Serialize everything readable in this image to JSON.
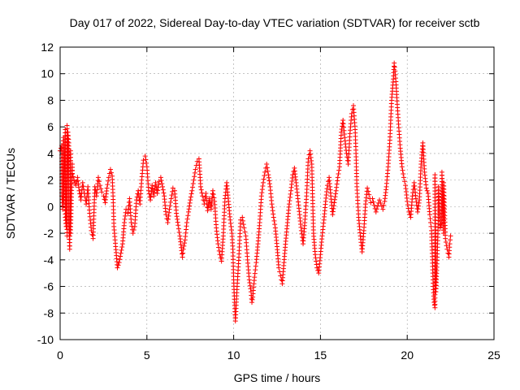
{
  "chart_data": {
    "type": "scatter",
    "title": "Day 017 of 2022, Sidereal Day-to-day VTEC variation (SDTVAR) for receiver sctb",
    "xlabel": "GPS time / hours",
    "ylabel": "SDTVAR / TECUs",
    "xlim": [
      0,
      25
    ],
    "ylim": [
      -10,
      12
    ],
    "xticks": [
      0,
      5,
      10,
      15,
      20,
      25
    ],
    "yticks": [
      -10,
      -8,
      -6,
      -4,
      -2,
      0,
      2,
      4,
      6,
      8,
      10,
      12
    ],
    "grid": true,
    "marker": "+",
    "series": [
      {
        "name": "sctb",
        "color": "#ff0000",
        "points": [
          [
            0.0,
            4.2
          ],
          [
            0.1,
            4.6
          ],
          [
            0.2,
            5.2
          ],
          [
            0.3,
            5.8
          ],
          [
            0.4,
            6.1
          ],
          [
            0.45,
            5.6
          ],
          [
            0.5,
            4.8
          ],
          [
            0.6,
            4.2
          ],
          [
            0.7,
            3.2
          ],
          [
            0.1,
            0.8
          ],
          [
            0.15,
            -0.2
          ],
          [
            0.2,
            0.3
          ],
          [
            0.3,
            -0.8
          ],
          [
            0.35,
            -1.5
          ],
          [
            0.4,
            -2.2
          ],
          [
            0.5,
            -1.2
          ],
          [
            0.55,
            -3.2
          ],
          [
            0.6,
            -2.0
          ],
          [
            0.7,
            2.5
          ],
          [
            0.8,
            2.0
          ],
          [
            0.9,
            1.6
          ],
          [
            1.0,
            2.2
          ],
          [
            1.1,
            1.2
          ],
          [
            1.2,
            0.5
          ],
          [
            1.3,
            1.8
          ],
          [
            1.4,
            1.0
          ],
          [
            1.5,
            0.2
          ],
          [
            1.6,
            1.5
          ],
          [
            1.7,
            -0.5
          ],
          [
            1.8,
            -1.8
          ],
          [
            1.9,
            -2.4
          ],
          [
            2.0,
            1.5
          ],
          [
            2.1,
            0.8
          ],
          [
            2.2,
            2.2
          ],
          [
            2.3,
            1.6
          ],
          [
            2.4,
            1.1
          ],
          [
            2.5,
            0.8
          ],
          [
            2.6,
            0.3
          ],
          [
            2.7,
            1.4
          ],
          [
            2.8,
            2.2
          ],
          [
            2.9,
            2.8
          ],
          [
            3.0,
            2.3
          ],
          [
            3.05,
            0.8
          ],
          [
            3.1,
            -1.5
          ],
          [
            3.2,
            -3.0
          ],
          [
            3.3,
            -4.6
          ],
          [
            3.4,
            -4.2
          ],
          [
            3.5,
            -3.5
          ],
          [
            3.6,
            -2.8
          ],
          [
            3.7,
            -1.2
          ],
          [
            3.8,
            -0.2
          ],
          [
            3.9,
            -0.5
          ],
          [
            4.0,
            0.6
          ],
          [
            4.1,
            -1.2
          ],
          [
            4.2,
            -2.0
          ],
          [
            4.3,
            -1.5
          ],
          [
            4.4,
            0.5
          ],
          [
            4.5,
            1.2
          ],
          [
            4.6,
            0.2
          ],
          [
            4.7,
            2.0
          ],
          [
            4.8,
            3.5
          ],
          [
            4.9,
            3.8
          ],
          [
            5.0,
            3.0
          ],
          [
            5.1,
            1.2
          ],
          [
            5.2,
            0.5
          ],
          [
            5.3,
            1.6
          ],
          [
            5.4,
            0.8
          ],
          [
            5.5,
            1.8
          ],
          [
            5.6,
            1.0
          ],
          [
            5.7,
            1.9
          ],
          [
            5.8,
            2.2
          ],
          [
            5.9,
            1.5
          ],
          [
            6.0,
            0.8
          ],
          [
            6.1,
            -0.6
          ],
          [
            6.2,
            -1.2
          ],
          [
            6.3,
            -0.2
          ],
          [
            6.4,
            0.6
          ],
          [
            6.5,
            1.4
          ],
          [
            6.6,
            1.2
          ],
          [
            6.7,
            -0.5
          ],
          [
            6.8,
            -1.4
          ],
          [
            6.9,
            -2.2
          ],
          [
            7.0,
            -3.3
          ],
          [
            7.05,
            -3.8
          ],
          [
            7.1,
            -3.2
          ],
          [
            7.2,
            -2.5
          ],
          [
            7.3,
            -1.2
          ],
          [
            7.4,
            -0.4
          ],
          [
            7.5,
            0.5
          ],
          [
            7.6,
            1.2
          ],
          [
            7.7,
            2.0
          ],
          [
            7.8,
            2.8
          ],
          [
            7.9,
            3.4
          ],
          [
            8.0,
            3.6
          ],
          [
            8.1,
            1.5
          ],
          [
            8.2,
            0.8
          ],
          [
            8.3,
            0.2
          ],
          [
            8.4,
            1.0
          ],
          [
            8.5,
            -0.3
          ],
          [
            8.6,
            0.6
          ],
          [
            8.7,
            -0.2
          ],
          [
            8.8,
            1.2
          ],
          [
            8.9,
            0.4
          ],
          [
            9.0,
            -1.6
          ],
          [
            9.1,
            -2.8
          ],
          [
            9.2,
            -3.6
          ],
          [
            9.3,
            -4.1
          ],
          [
            9.4,
            -2.2
          ],
          [
            9.5,
            0.6
          ],
          [
            9.6,
            1.8
          ],
          [
            9.7,
            0.4
          ],
          [
            9.8,
            -1.0
          ],
          [
            9.9,
            -2.0
          ],
          [
            9.95,
            -3.2
          ],
          [
            10.0,
            -5.5
          ],
          [
            10.05,
            -7.2
          ],
          [
            10.1,
            -8.6
          ],
          [
            10.2,
            -6.0
          ],
          [
            10.3,
            -3.8
          ],
          [
            10.4,
            -1.0
          ],
          [
            10.5,
            -0.8
          ],
          [
            10.6,
            -1.6
          ],
          [
            10.7,
            -2.2
          ],
          [
            10.8,
            -4.0
          ],
          [
            10.9,
            -5.5
          ],
          [
            11.0,
            -6.4
          ],
          [
            11.05,
            -7.2
          ],
          [
            11.1,
            -6.8
          ],
          [
            11.2,
            -5.3
          ],
          [
            11.3,
            -4.2
          ],
          [
            11.4,
            -2.8
          ],
          [
            11.5,
            -1.2
          ],
          [
            11.6,
            0.8
          ],
          [
            11.7,
            1.8
          ],
          [
            11.8,
            2.6
          ],
          [
            11.9,
            3.2
          ],
          [
            12.0,
            2.4
          ],
          [
            12.1,
            1.5
          ],
          [
            12.2,
            0.2
          ],
          [
            12.3,
            -0.8
          ],
          [
            12.4,
            -1.6
          ],
          [
            12.5,
            -3.0
          ],
          [
            12.6,
            -4.6
          ],
          [
            12.7,
            -5.2
          ],
          [
            12.8,
            -5.8
          ],
          [
            12.9,
            -4.2
          ],
          [
            13.0,
            -2.6
          ],
          [
            13.1,
            -1.2
          ],
          [
            13.2,
            0.2
          ],
          [
            13.3,
            1.2
          ],
          [
            13.4,
            2.4
          ],
          [
            13.5,
            2.9
          ],
          [
            13.6,
            1.8
          ],
          [
            13.7,
            0.6
          ],
          [
            13.8,
            -0.6
          ],
          [
            13.9,
            -1.8
          ],
          [
            14.0,
            -2.8
          ],
          [
            14.1,
            -1.2
          ],
          [
            14.2,
            0.8
          ],
          [
            14.3,
            3.6
          ],
          [
            14.4,
            4.2
          ],
          [
            14.5,
            3.2
          ],
          [
            14.6,
            -2.0
          ],
          [
            14.7,
            -3.6
          ],
          [
            14.8,
            -4.6
          ],
          [
            14.9,
            -5.0
          ],
          [
            15.0,
            -3.6
          ],
          [
            15.1,
            -2.2
          ],
          [
            15.2,
            -1.0
          ],
          [
            15.3,
            0.4
          ],
          [
            15.4,
            1.6
          ],
          [
            15.5,
            2.2
          ],
          [
            15.6,
            0.8
          ],
          [
            15.7,
            -0.6
          ],
          [
            15.8,
            0.3
          ],
          [
            15.9,
            1.2
          ],
          [
            16.0,
            2.2
          ],
          [
            16.1,
            3.0
          ],
          [
            16.2,
            5.6
          ],
          [
            16.3,
            6.5
          ],
          [
            16.4,
            5.2
          ],
          [
            16.5,
            4.0
          ],
          [
            16.6,
            3.2
          ],
          [
            16.7,
            5.5
          ],
          [
            16.8,
            7.0
          ],
          [
            16.9,
            7.6
          ],
          [
            17.0,
            5.8
          ],
          [
            17.05,
            4.0
          ],
          [
            17.1,
            1.5
          ],
          [
            17.2,
            -0.8
          ],
          [
            17.3,
            -2.2
          ],
          [
            17.4,
            -3.4
          ],
          [
            17.5,
            -1.8
          ],
          [
            17.6,
            0.2
          ],
          [
            17.7,
            1.4
          ],
          [
            17.8,
            0.9
          ],
          [
            17.9,
            0.3
          ],
          [
            18.0,
            0.6
          ],
          [
            18.2,
            -0.4
          ],
          [
            18.4,
            0.5
          ],
          [
            18.6,
            -0.2
          ],
          [
            18.7,
            0.4
          ],
          [
            18.8,
            1.5
          ],
          [
            18.9,
            3.0
          ],
          [
            19.0,
            5.0
          ],
          [
            19.05,
            6.5
          ],
          [
            19.1,
            8.0
          ],
          [
            19.2,
            9.6
          ],
          [
            19.25,
            10.8
          ],
          [
            19.3,
            10.2
          ],
          [
            19.35,
            9.4
          ],
          [
            19.4,
            8.2
          ],
          [
            19.5,
            6.2
          ],
          [
            19.6,
            4.4
          ],
          [
            19.7,
            3.0
          ],
          [
            19.8,
            2.2
          ],
          [
            19.9,
            1.6
          ],
          [
            20.0,
            0.4
          ],
          [
            20.1,
            -0.4
          ],
          [
            20.2,
            -0.8
          ],
          [
            20.3,
            0.8
          ],
          [
            20.4,
            1.8
          ],
          [
            20.5,
            0.6
          ],
          [
            20.6,
            -0.4
          ],
          [
            20.7,
            0.5
          ],
          [
            20.8,
            3.2
          ],
          [
            20.9,
            4.8
          ],
          [
            21.0,
            2.6
          ],
          [
            21.1,
            1.4
          ],
          [
            21.2,
            1.0
          ],
          [
            21.3,
            -0.6
          ],
          [
            21.35,
            -1.2
          ],
          [
            21.4,
            -1.8
          ],
          [
            21.45,
            -4.0
          ],
          [
            21.5,
            -6.0
          ],
          [
            21.55,
            -7.2
          ],
          [
            21.6,
            -7.6
          ],
          [
            21.65,
            -6.4
          ],
          [
            21.7,
            -4.8
          ],
          [
            21.8,
            -0.8
          ],
          [
            21.9,
            -1.6
          ],
          [
            22.0,
            -1.2
          ],
          [
            22.1,
            -2.0
          ],
          [
            22.2,
            -2.4
          ],
          [
            22.3,
            -3.2
          ],
          [
            22.4,
            -3.8
          ],
          [
            22.45,
            -2.8
          ],
          [
            22.5,
            -2.2
          ],
          [
            22.1,
            1.8
          ],
          [
            22.0,
            2.6
          ],
          [
            21.8,
            1.5
          ],
          [
            21.6,
            2.4
          ]
        ]
      }
    ]
  }
}
